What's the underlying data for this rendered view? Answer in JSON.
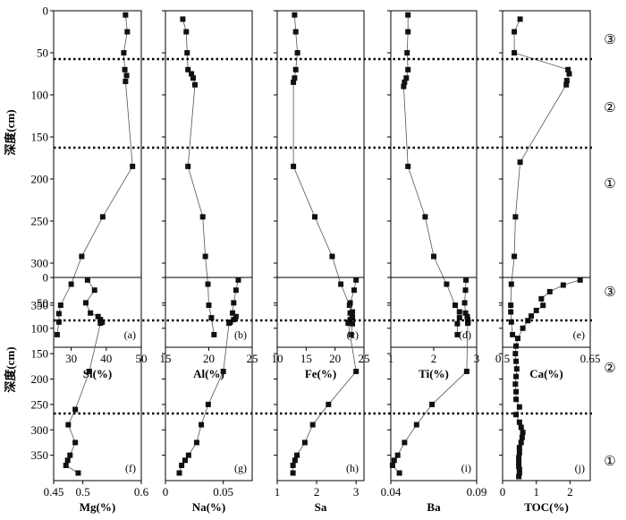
{
  "figure": {
    "ylabel": "深度(cm)",
    "zone_labels": [
      "③",
      "②",
      "①"
    ]
  },
  "chart_data": [
    {
      "type": "line",
      "tag": "(a)",
      "xlabel": "Si(%)",
      "xlim": [
        25,
        50
      ],
      "xticks": [
        30,
        40,
        50
      ],
      "ylim": [
        0,
        400
      ],
      "yticks": [
        0,
        50,
        100,
        150,
        200,
        250,
        300,
        350
      ],
      "yreverse": true,
      "series": [
        {
          "x": [
            45.5,
            46.0,
            45.0,
            45.3,
            45.8,
            45.5,
            47.5,
            39.0,
            33.0,
            30.0,
            27.0,
            26.5,
            26.5,
            26.0
          ],
          "y": [
            5,
            25,
            50,
            70,
            77,
            84,
            185,
            245,
            292,
            325,
            350,
            360,
            370,
            385
          ]
        }
      ]
    },
    {
      "type": "line",
      "tag": "(b)",
      "xlabel": "Al(%)",
      "xlim": [
        15,
        25
      ],
      "xticks": [
        15,
        20,
        25
      ],
      "ylim": [
        0,
        400
      ],
      "yreverse": true,
      "series": [
        {
          "x": [
            17.0,
            17.4,
            17.5,
            17.6,
            18.0,
            18.2,
            18.4,
            17.6,
            19.3,
            19.6,
            19.9,
            20.0,
            20.3,
            20.6
          ],
          "y": [
            10,
            25,
            50,
            70,
            75,
            80,
            88,
            185,
            245,
            292,
            325,
            350,
            365,
            385
          ]
        }
      ]
    },
    {
      "type": "line",
      "tag": "(c)",
      "xlabel": "Fe(%)",
      "xlim": [
        10,
        25
      ],
      "xticks": [
        10,
        15,
        20,
        25
      ],
      "ylim": [
        0,
        400
      ],
      "yreverse": true,
      "series": [
        {
          "x": [
            13.0,
            13.2,
            13.5,
            13.2,
            13.0,
            12.8,
            12.8,
            16.5,
            19.5,
            21.0,
            22.5,
            23.0,
            23.0,
            23.0,
            22.8
          ],
          "y": [
            5,
            25,
            50,
            70,
            80,
            85,
            185,
            245,
            292,
            325,
            350,
            358,
            365,
            372,
            385
          ]
        }
      ]
    },
    {
      "type": "line",
      "tag": "(d)",
      "xlabel": "Ti(%)",
      "xlim": [
        1,
        3
      ],
      "xticks": [
        1,
        2,
        3
      ],
      "ylim": [
        0,
        400
      ],
      "yreverse": true,
      "series": [
        {
          "x": [
            1.4,
            1.4,
            1.38,
            1.4,
            1.36,
            1.32,
            1.3,
            1.4,
            1.8,
            2.0,
            2.3,
            2.5,
            2.6,
            2.6,
            2.55,
            2.55
          ],
          "y": [
            5,
            25,
            50,
            70,
            80,
            85,
            90,
            185,
            245,
            292,
            325,
            350,
            358,
            365,
            372,
            385
          ]
        }
      ]
    },
    {
      "type": "line",
      "tag": "(e)",
      "xlabel": "Ca(%)",
      "xlim": [
        0.5,
        0.65
      ],
      "xticks": [
        0.5,
        0.65
      ],
      "ylim": [
        0,
        400
      ],
      "yreverse": true,
      "series": [
        {
          "x": [
            0.53,
            0.52,
            0.52,
            0.612,
            0.614,
            0.61,
            0.609,
            0.53,
            0.522,
            0.52,
            0.515,
            0.514,
            0.514,
            0.515,
            0.517
          ],
          "y": [
            10,
            25,
            50,
            70,
            75,
            83,
            88,
            180,
            245,
            292,
            325,
            350,
            358,
            370,
            385
          ]
        }
      ]
    },
    {
      "type": "line",
      "tag": "(f)",
      "xlabel": "Mg(%)",
      "xlim": [
        0.45,
        0.6
      ],
      "xticks": [
        0.45,
        0.5,
        0.6
      ],
      "ylim": [
        0,
        400
      ],
      "yreverse": true,
      "series": [
        {
          "x": [
            0.508,
            0.52,
            0.505,
            0.513,
            0.526,
            0.53,
            0.533,
            0.53,
            0.511,
            0.487,
            0.475,
            0.487,
            0.478,
            0.474,
            0.471,
            0.492
          ],
          "y": [
            5,
            25,
            50,
            70,
            77,
            83,
            88,
            90,
            185,
            260,
            290,
            325,
            350,
            360,
            370,
            385
          ]
        }
      ]
    },
    {
      "type": "line",
      "tag": "(g)",
      "xlabel": "Na(%)",
      "xlim": [
        0,
        0.075
      ],
      "xticks": [
        0,
        0.05
      ],
      "ylim": [
        0,
        400
      ],
      "yreverse": true,
      "series": [
        {
          "x": [
            0.063,
            0.061,
            0.059,
            0.058,
            0.061,
            0.059,
            0.056,
            0.055,
            0.05,
            0.037,
            0.031,
            0.027,
            0.02,
            0.017,
            0.014,
            0.012
          ],
          "y": [
            5,
            25,
            50,
            70,
            77,
            83,
            88,
            90,
            185,
            250,
            290,
            325,
            350,
            360,
            370,
            385
          ]
        }
      ]
    },
    {
      "type": "line",
      "tag": "(h)",
      "xlabel": "Sa",
      "xlim": [
        1,
        3.2
      ],
      "xticks": [
        1,
        2,
        3
      ],
      "ylim": [
        0,
        400
      ],
      "yreverse": true,
      "series": [
        {
          "x": [
            3.0,
            2.95,
            2.85,
            2.85,
            2.9,
            2.85,
            2.8,
            2.8,
            3.0,
            2.3,
            1.9,
            1.7,
            1.5,
            1.45,
            1.4,
            1.4
          ],
          "y": [
            5,
            25,
            50,
            70,
            77,
            83,
            88,
            90,
            185,
            250,
            290,
            325,
            350,
            360,
            370,
            385
          ]
        }
      ]
    },
    {
      "type": "line",
      "tag": "(i)",
      "xlabel": "Ba",
      "xlim": [
        0.04,
        0.09
      ],
      "xticks": [
        0.04,
        0.09
      ],
      "ylim": [
        0,
        400
      ],
      "yreverse": true,
      "series": [
        {
          "x": [
            0.0838,
            0.0835,
            0.083,
            0.0835,
            0.0845,
            0.0848,
            0.085,
            0.0848,
            0.0842,
            0.064,
            0.055,
            0.048,
            0.044,
            0.042,
            0.041,
            0.045
          ],
          "y": [
            5,
            25,
            50,
            70,
            77,
            83,
            88,
            90,
            185,
            250,
            290,
            325,
            350,
            360,
            370,
            385
          ]
        }
      ]
    },
    {
      "type": "line",
      "tag": "(j)",
      "xlabel": "TOC(%)",
      "xlim": [
        0,
        2.6
      ],
      "xticks": [
        0,
        1,
        2
      ],
      "ylim": [
        0,
        400
      ],
      "yreverse": true,
      "series": [
        {
          "x": [
            2.3,
            1.8,
            1.4,
            1.15,
            1.2,
            1.0,
            0.85,
            0.75,
            0.6,
            0.45,
            0.4,
            0.38,
            0.4,
            0.42,
            0.4,
            0.38,
            0.4,
            0.4,
            0.5,
            0.4,
            0.5,
            0.55,
            0.6,
            0.58,
            0.55,
            0.5,
            0.5,
            0.48,
            0.48,
            0.48,
            0.5,
            0.5,
            0.48
          ],
          "y": [
            5,
            15,
            28,
            42,
            55,
            65,
            76,
            85,
            100,
            120,
            135,
            150,
            165,
            180,
            195,
            210,
            225,
            240,
            255,
            270,
            285,
            295,
            305,
            315,
            325,
            335,
            345,
            355,
            365,
            372,
            378,
            385,
            392
          ]
        }
      ]
    }
  ]
}
